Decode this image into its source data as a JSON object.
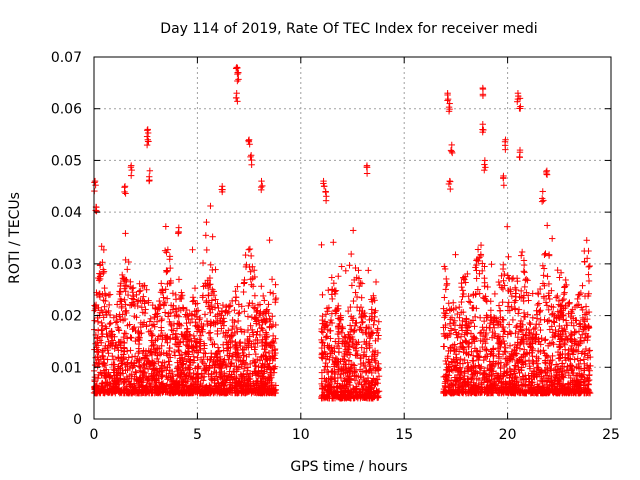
{
  "chart_data": {
    "type": "scatter",
    "title": "Day 114 of 2019, Rate Of TEC Index for receiver medi",
    "xlabel": "GPS time / hours",
    "ylabel": "ROTI / TECUs",
    "xlim": [
      0,
      25
    ],
    "ylim": [
      0,
      0.07
    ],
    "x_ticks": [
      0,
      5,
      10,
      15,
      20,
      25
    ],
    "x_tick_labels": [
      "0",
      "5",
      "10",
      "15",
      "20",
      "25"
    ],
    "y_ticks": [
      0,
      0.01,
      0.02,
      0.03,
      0.04,
      0.05,
      0.06,
      0.07
    ],
    "y_tick_labels": [
      "0",
      "0.01",
      "0.02",
      "0.03",
      "0.04",
      "0.05",
      "0.06",
      "0.07"
    ],
    "grid": true,
    "marker": "+",
    "color": "#ff0000",
    "series": [
      {
        "name": "ROTI",
        "segments": [
          {
            "x_range": [
              0,
              8.8
            ],
            "baseline": 0.011,
            "spread": 0.018
          },
          {
            "x_range": [
              11.0,
              13.8
            ],
            "baseline": 0.01,
            "spread": 0.017
          },
          {
            "x_range": [
              16.9,
              24.0
            ],
            "baseline": 0.011,
            "spread": 0.019
          }
        ],
        "highlights": [
          {
            "x": 0.05,
            "y": 0.046
          },
          {
            "x": 0.1,
            "y": 0.041
          },
          {
            "x": 1.5,
            "y": 0.045
          },
          {
            "x": 1.8,
            "y": 0.049
          },
          {
            "x": 2.6,
            "y": 0.056
          },
          {
            "x": 2.6,
            "y": 0.054
          },
          {
            "x": 2.7,
            "y": 0.048
          },
          {
            "x": 4.1,
            "y": 0.037
          },
          {
            "x": 6.2,
            "y": 0.045
          },
          {
            "x": 6.9,
            "y": 0.068
          },
          {
            "x": 6.95,
            "y": 0.067
          },
          {
            "x": 6.9,
            "y": 0.063
          },
          {
            "x": 7.5,
            "y": 0.054
          },
          {
            "x": 7.6,
            "y": 0.051
          },
          {
            "x": 8.1,
            "y": 0.046
          },
          {
            "x": 11.1,
            "y": 0.046
          },
          {
            "x": 11.2,
            "y": 0.044
          },
          {
            "x": 13.2,
            "y": 0.049
          },
          {
            "x": 17.1,
            "y": 0.063
          },
          {
            "x": 17.2,
            "y": 0.061
          },
          {
            "x": 17.3,
            "y": 0.053
          },
          {
            "x": 17.2,
            "y": 0.046
          },
          {
            "x": 18.8,
            "y": 0.064
          },
          {
            "x": 18.8,
            "y": 0.057
          },
          {
            "x": 18.9,
            "y": 0.05
          },
          {
            "x": 19.9,
            "y": 0.054
          },
          {
            "x": 19.8,
            "y": 0.047
          },
          {
            "x": 20.5,
            "y": 0.063
          },
          {
            "x": 20.6,
            "y": 0.062
          },
          {
            "x": 20.6,
            "y": 0.052
          },
          {
            "x": 21.9,
            "y": 0.048
          },
          {
            "x": 21.7,
            "y": 0.044
          }
        ]
      }
    ]
  }
}
